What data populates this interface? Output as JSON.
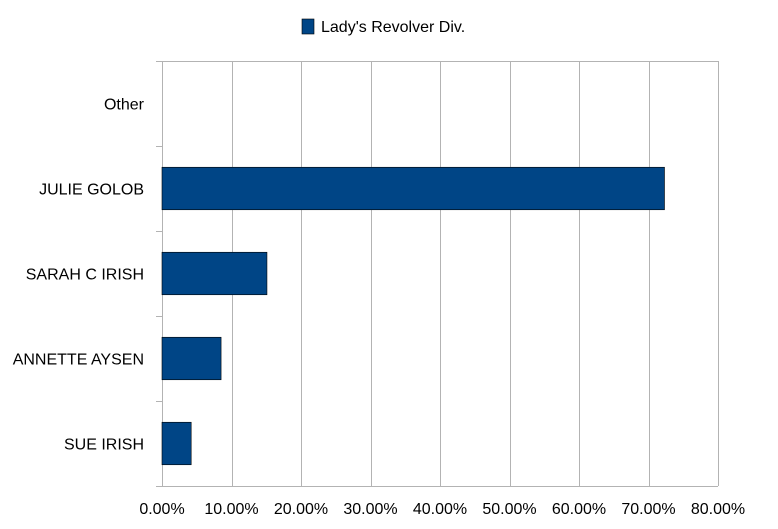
{
  "chart_data": {
    "type": "bar",
    "orientation": "horizontal",
    "categories": [
      "Other",
      "JULIE GOLOB",
      "SARAH C IRISH",
      "ANNETTE AYSEN",
      "SUE IRISH"
    ],
    "series": [
      {
        "name": "Lady's Revolver Div.",
        "color": "#004586",
        "values": [
          0.0,
          72.3,
          15.1,
          8.5,
          4.2
        ]
      }
    ],
    "xlim": [
      0,
      80
    ],
    "xticks": [
      0,
      10,
      20,
      30,
      40,
      50,
      60,
      70,
      80
    ],
    "xtick_labels": [
      "0.00%",
      "10.00%",
      "20.00%",
      "30.00%",
      "40.00%",
      "50.00%",
      "60.00%",
      "70.00%",
      "80.00%"
    ],
    "grid": true,
    "legend": {
      "position": "top-center",
      "entries": [
        "Lady's Revolver Div."
      ]
    }
  }
}
